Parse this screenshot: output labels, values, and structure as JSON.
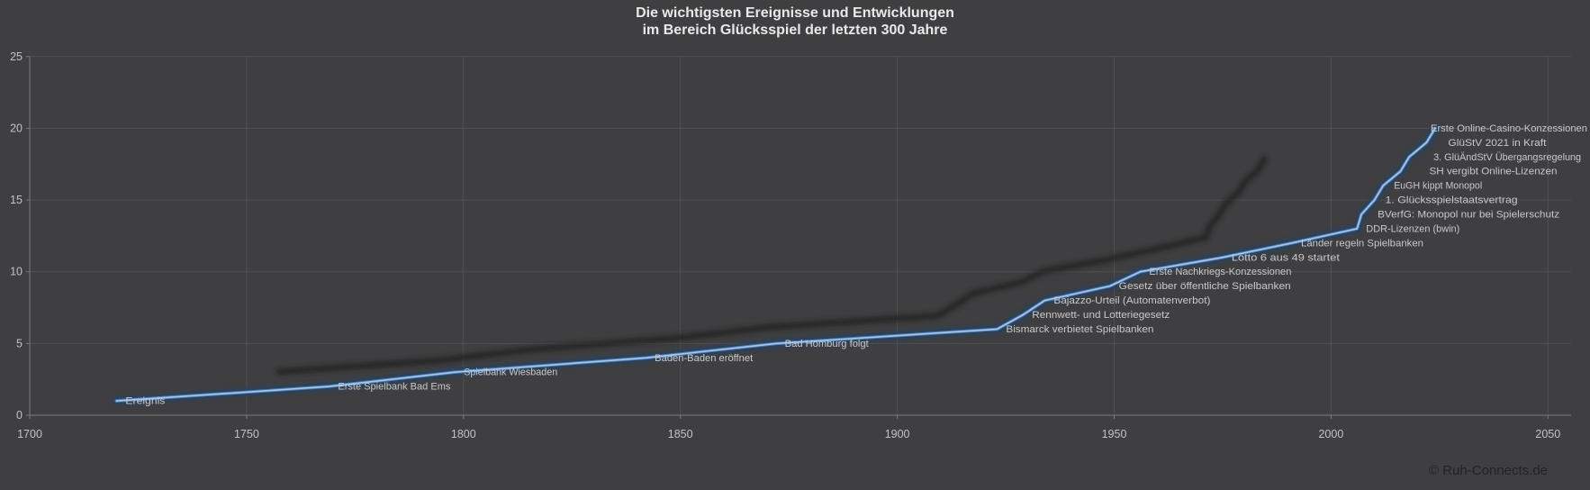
{
  "title": {
    "line1": "Die wichtigsten Ereignisse und Entwicklungen",
    "line2": "im Bereich Glücksspiel der letzten 300 Jahre"
  },
  "footer": {
    "copyright": "© Ruh-Connects.de"
  },
  "chart_data": {
    "type": "line",
    "title": "Die wichtigsten Ereignisse und Entwicklungen im Bereich Glücksspiel der letzten 300 Jahre",
    "xlabel": "",
    "ylabel": "",
    "xlim": [
      1700,
      2050
    ],
    "ylim": [
      0,
      25
    ],
    "x_ticks": [
      1700,
      1750,
      1800,
      1850,
      1900,
      1950,
      2000,
      2050
    ],
    "y_ticks": [
      0,
      5,
      10,
      15,
      20,
      25
    ],
    "grid": true,
    "legend_position": "none",
    "series_name": "Ereignis",
    "events": [
      {
        "label": "Ereignis",
        "year": 1720,
        "value": 1
      },
      {
        "label": "Erste Spielbank Bad Ems",
        "year": 1769,
        "value": 2
      },
      {
        "label": "Spielbank Wiesbaden",
        "year": 1798,
        "value": 3
      },
      {
        "label": "Baden-Baden eröffnet",
        "year": 1842,
        "value": 4
      },
      {
        "label": "Bad Homburg folgt",
        "year": 1872,
        "value": 5
      },
      {
        "label": "Bismarck verbietet Spielbanken",
        "year": 1923,
        "value": 6
      },
      {
        "label": "Rennwett- und Lotteriegesetz",
        "year": 1929,
        "value": 7
      },
      {
        "label": "Bajazzo-Urteil (Automatenverbot)",
        "year": 1934,
        "value": 8
      },
      {
        "label": "Gesetz über öffentliche Spielbanken",
        "year": 1949,
        "value": 9
      },
      {
        "label": "Erste Nachkriegs-Konzessionen",
        "year": 1956,
        "value": 10
      },
      {
        "label": "Lotto 6 aus 49 startet",
        "year": 1975,
        "value": 11
      },
      {
        "label": "Länder regeln Spielbanken",
        "year": 1991,
        "value": 12
      },
      {
        "label": "DDR-Lizenzen (bwin)",
        "year": 2006,
        "value": 13
      },
      {
        "label": "BVerfG: Monopol nur bei Spielerschutz",
        "year": 2007,
        "value": 14,
        "label_dx": 18
      },
      {
        "label": "1. Glücksspielstaatsvertrag",
        "year": 2010,
        "value": 15,
        "label_dx": 12
      },
      {
        "label": "EuGH kippt Monopol",
        "year": 2012,
        "value": 16,
        "label_dx": 12
      },
      {
        "label": "SH vergibt Online-Lizenzen",
        "year": 2016,
        "value": 17,
        "label_dx": 32
      },
      {
        "label": "3. GlüÄndStV Übergangsregelung",
        "year": 2018,
        "value": 18,
        "label_dx": 27
      },
      {
        "label": "GlüStV 2021 in Kraft",
        "year": 2022,
        "value": 19,
        "label_dx": 24
      },
      {
        "label": "Erste Online-Casino-Konzessionen",
        "year": 2024,
        "value": 20,
        "label_dx": -5
      }
    ],
    "colors": {
      "background": "#3f3f41",
      "line_core": "#a6c8ec",
      "line_mid": "#4e7cb4",
      "line_glow": "#27425f",
      "shadow_line": "#222224",
      "grid": "#5f5f62",
      "axis": "#8a8a8d",
      "tick_label": "#c3c3c4",
      "event_label": "#c9c9ca",
      "title_text": "#e9e9e9",
      "copyright_text": "#232325"
    }
  }
}
